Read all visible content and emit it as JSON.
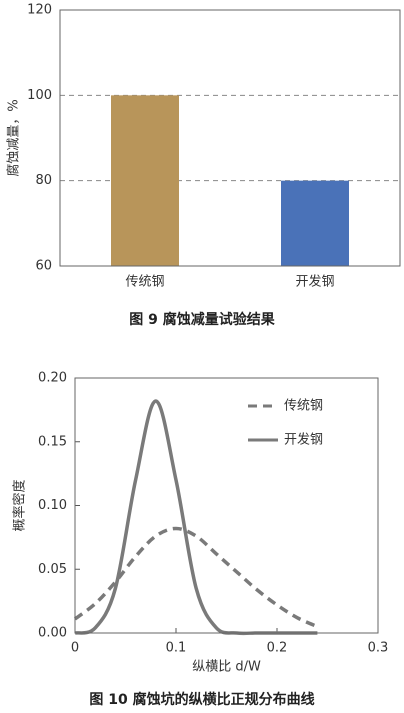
{
  "chart_data": [
    {
      "type": "bar",
      "ylabel": "腐蚀减量，%",
      "caption": "图 9   腐蚀减量试验结果",
      "categories": [
        "传统钢",
        "开发钢"
      ],
      "values": [
        100,
        80
      ],
      "colors": [
        "#b8955a",
        "#4a72b8"
      ],
      "ylim": [
        60,
        120
      ],
      "yticks": [
        60,
        80,
        100,
        120
      ],
      "grid": true
    },
    {
      "type": "line",
      "xlabel": "纵横比 d/W",
      "ylabel": "概率密度",
      "caption": "图 10   腐蚀坑的纵横比正规分布曲线",
      "x": [
        0,
        0.02,
        0.04,
        0.06,
        0.08,
        0.1,
        0.12,
        0.14,
        0.16,
        0.18,
        0.2,
        0.22,
        0.24
      ],
      "series": [
        {
          "name": "传统钢",
          "color": "#7a7a7a",
          "linestyle": "dashed",
          "values": [
            0.011,
            0.023,
            0.04,
            0.06,
            0.076,
            0.082,
            0.076,
            0.062,
            0.048,
            0.034,
            0.022,
            0.012,
            0.005
          ]
        },
        {
          "name": "开发钢",
          "color": "#7a7a7a",
          "linestyle": "solid",
          "values": [
            0,
            0.004,
            0.035,
            0.12,
            0.182,
            0.12,
            0.035,
            0.004,
            0,
            0,
            0,
            0,
            0
          ]
        }
      ],
      "xlim": [
        0,
        0.3
      ],
      "xticks": [
        0,
        0.1,
        0.2,
        0.3
      ],
      "ylim": [
        0,
        0.2
      ],
      "yticks": [
        {
          "value": 0,
          "label": "0.00"
        },
        {
          "value": 0.05,
          "label": "0.05"
        },
        {
          "value": 0.1,
          "label": "0.10"
        },
        {
          "value": 0.15,
          "label": "0.15"
        },
        {
          "value": 0.2,
          "label": "0.20"
        }
      ],
      "legend": "upper right"
    }
  ]
}
